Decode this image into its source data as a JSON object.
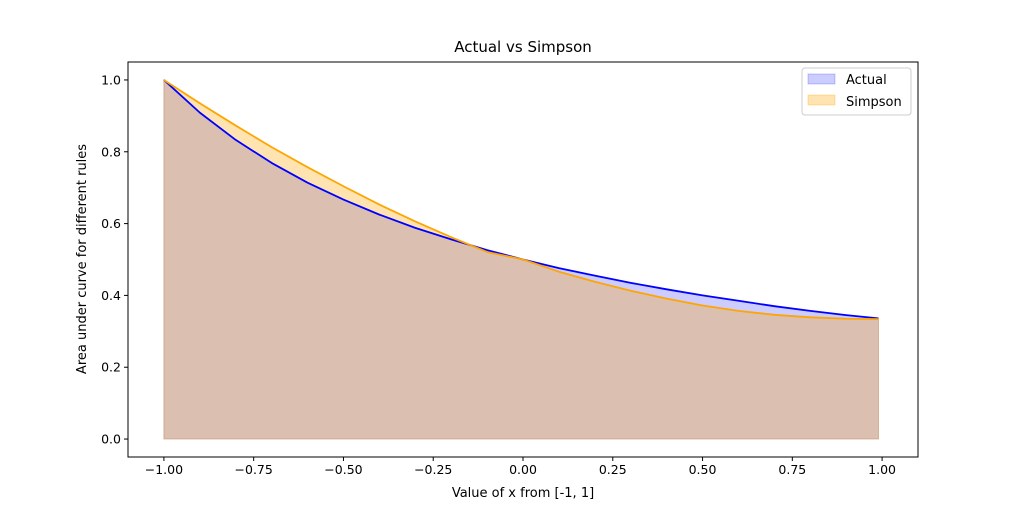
{
  "chart_data": {
    "type": "area",
    "title": "Actual vs Simpson",
    "xlabel": "Value of x from [-1, 1]",
    "ylabel": "Area under curve for different rules",
    "xlim": [
      -1.1,
      1.1
    ],
    "ylim": [
      -0.05,
      1.05
    ],
    "xticks": [
      -1.0,
      -0.75,
      -0.5,
      -0.25,
      0.0,
      0.25,
      0.5,
      0.75,
      1.0
    ],
    "xtick_labels": [
      "−1.00",
      "−0.75",
      "−0.50",
      "−0.25",
      "0.00",
      "0.25",
      "0.50",
      "0.75",
      "1.00"
    ],
    "yticks": [
      0.0,
      0.2,
      0.4,
      0.6,
      0.8,
      1.0
    ],
    "ytick_labels": [
      "0.0",
      "0.2",
      "0.4",
      "0.6",
      "0.8",
      "1.0"
    ],
    "grid": false,
    "legend_position": "upper-right",
    "x": [
      -1.0,
      -0.9,
      -0.8,
      -0.7,
      -0.6,
      -0.5,
      -0.4,
      -0.3,
      -0.2,
      -0.1,
      0.0,
      0.1,
      0.2,
      0.3,
      0.4,
      0.5,
      0.6,
      0.7,
      0.8,
      0.9,
      0.99
    ],
    "series": [
      {
        "name": "Actual",
        "color": "#0000ff",
        "fill": "#0000ff",
        "values": [
          1.0,
          0.909,
          0.833,
          0.769,
          0.714,
          0.667,
          0.625,
          0.588,
          0.556,
          0.526,
          0.5,
          0.476,
          0.455,
          0.435,
          0.417,
          0.4,
          0.385,
          0.37,
          0.357,
          0.345,
          0.336
        ]
      },
      {
        "name": "Simpson",
        "color": "#ffa500",
        "fill": "#ffa500",
        "values": [
          1.0,
          0.935,
          0.873,
          0.813,
          0.757,
          0.704,
          0.653,
          0.606,
          0.562,
          0.521,
          0.5,
          0.466,
          0.438,
          0.413,
          0.391,
          0.372,
          0.357,
          0.346,
          0.339,
          0.335,
          0.334
        ]
      }
    ]
  }
}
